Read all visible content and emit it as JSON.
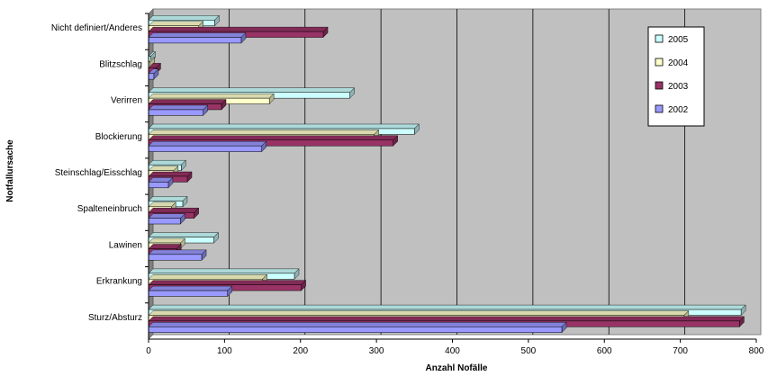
{
  "chart_data": {
    "type": "bar",
    "orientation": "horizontal",
    "title": "",
    "xlabel": "Anzahl Nofälle",
    "ylabel": "Notfallursache",
    "categories": [
      "Sturz/Absturz",
      "Erkrankung",
      "Lawinen",
      "Spalteneinbruch",
      "Steinschlag/Eisschlag",
      "Blockierung",
      "Verirren",
      "Blitzschlag",
      "Nicht definiert/Anderes"
    ],
    "series": [
      {
        "name": "2005",
        "color": "#ccffff",
        "values": [
          780,
          192,
          86,
          45,
          43,
          350,
          265,
          3,
          87
        ]
      },
      {
        "name": "2004",
        "color": "#ffffcc",
        "values": [
          705,
          150,
          42,
          30,
          33,
          297,
          159,
          2,
          66
        ]
      },
      {
        "name": "2003",
        "color": "#993366",
        "values": [
          778,
          201,
          37,
          60,
          51,
          322,
          96,
          10,
          230
        ]
      },
      {
        "name": "2002",
        "color": "#9999ff",
        "values": [
          544,
          104,
          70,
          42,
          26,
          149,
          72,
          7,
          122
        ]
      }
    ],
    "legend_order": [
      "2005",
      "2004",
      "2003",
      "2002"
    ],
    "xlim": [
      0,
      800
    ],
    "xticks": [
      0,
      100,
      200,
      300,
      400,
      500,
      600,
      700,
      800
    ],
    "grid": true,
    "legend_position": "top-right",
    "plot_background": "#c0c0c0"
  }
}
